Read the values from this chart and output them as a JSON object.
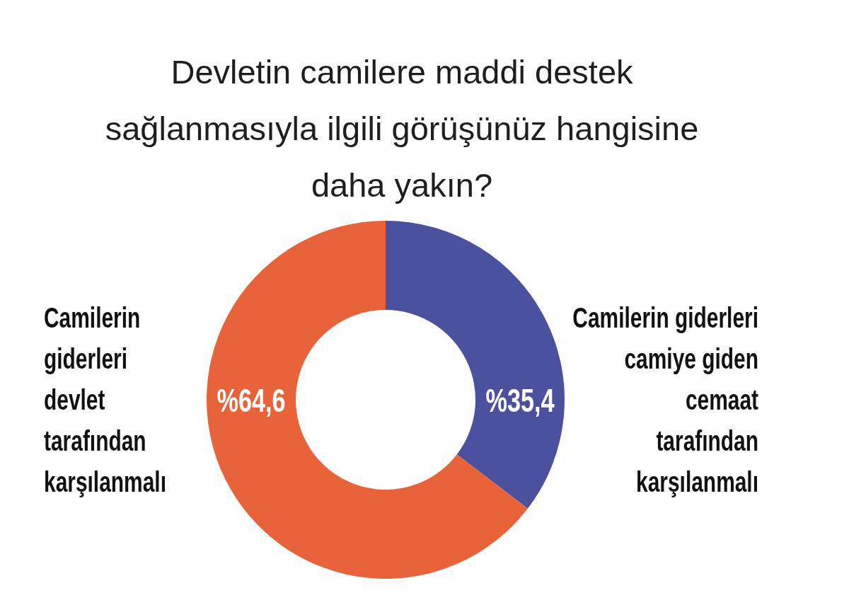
{
  "chart_data": {
    "type": "donut",
    "title": "Devletin camilere maddi destek\nsağlanmasıyla ilgili görüşünüz hangisine\ndaha yakın?",
    "categories": [
      "Camilerin giderleri\ncamiye giden\ncemaat\ntarafından\nkarşılanmalı",
      "Camilerin\ngiderleri\ndevlet\ntarafından\nkarşılanmalı"
    ],
    "values": [
      35.4,
      64.6
    ],
    "colors": [
      "#4b509f",
      "#e8633a"
    ],
    "value_labels": [
      "%35,4",
      "%64,6"
    ]
  }
}
